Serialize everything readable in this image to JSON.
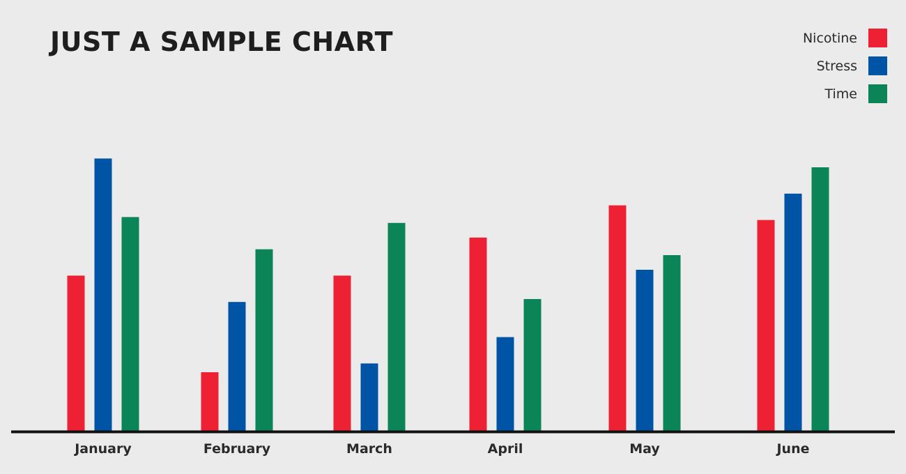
{
  "chart_data": {
    "type": "bar",
    "title": "JUST A SAMPLE CHART",
    "categories": [
      "January",
      "February",
      "March",
      "April",
      "May",
      "June"
    ],
    "series": [
      {
        "name": "Nicotine",
        "color": "#ed2133",
        "values": [
          53,
          20,
          53,
          66,
          77,
          72
        ]
      },
      {
        "name": "Stress",
        "color": "#0054a6",
        "values": [
          93,
          44,
          23,
          32,
          55,
          81
        ]
      },
      {
        "name": "Time",
        "color": "#0b8457",
        "values": [
          73,
          62,
          71,
          45,
          60,
          90
        ]
      }
    ],
    "ylim": [
      0,
      100
    ],
    "grid": false,
    "legend_position": "top-right"
  }
}
